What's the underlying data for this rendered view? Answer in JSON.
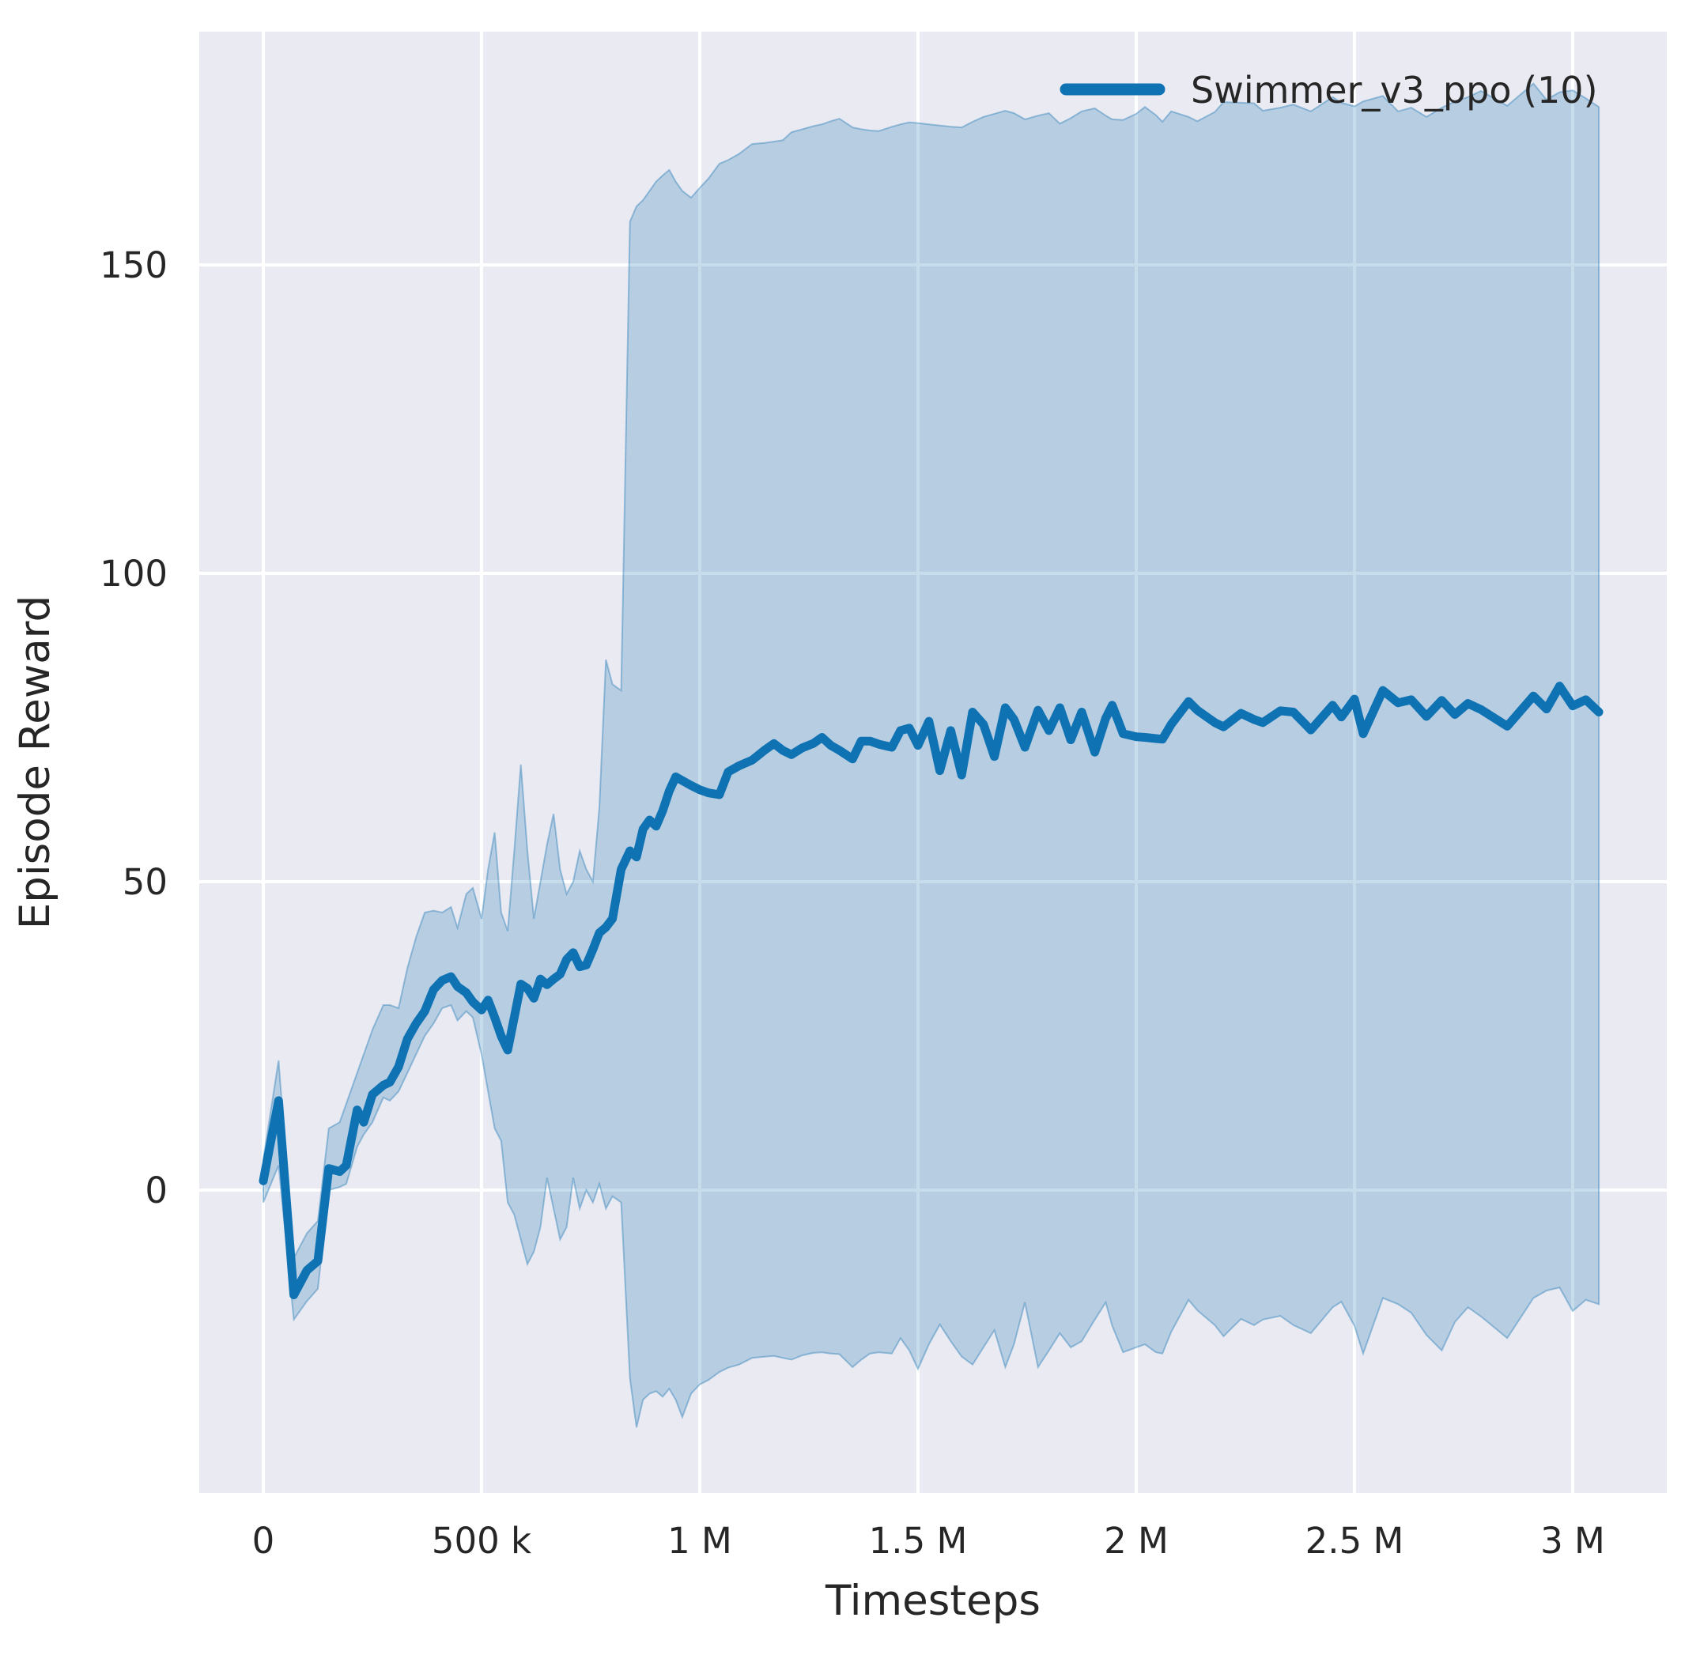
{
  "figure": {
    "background": "#ffffff",
    "plot_background": "#eaeaf2",
    "grid_color": "#ffffff",
    "text_color": "#262626"
  },
  "legend": {
    "label": "Swimmer_v3_ppo (10)",
    "line_color": "#0f72b3"
  },
  "axes": {
    "x_label": "Timesteps",
    "y_label": "Episode Reward",
    "x_ticks": [
      {
        "value": 0.0,
        "label": "0"
      },
      {
        "value": 0.5,
        "label": "500 k"
      },
      {
        "value": 1.0,
        "label": "1 M"
      },
      {
        "value": 1.5,
        "label": "1.5 M"
      },
      {
        "value": 2.0,
        "label": "2 M"
      },
      {
        "value": 2.5,
        "label": "2.5 M"
      },
      {
        "value": 3.0,
        "label": "3 M"
      }
    ],
    "y_ticks": [
      {
        "value": 0,
        "label": "0"
      },
      {
        "value": 50,
        "label": "50"
      },
      {
        "value": 100,
        "label": "100"
      },
      {
        "value": 150,
        "label": "150"
      }
    ]
  },
  "chart_data": {
    "type": "line",
    "title": "",
    "xlabel": "Timesteps",
    "ylabel": "Episode Reward",
    "legend_position": "upper right",
    "grid": true,
    "x_unit": "timesteps (millions)",
    "xlim_millions": [
      -0.147,
      3.215
    ],
    "ylim": [
      -49,
      188
    ],
    "line_color": "#0f72b3",
    "band_fill": "rgba(31,119,180,0.25)",
    "band_edge": "rgba(31,119,180,0.4)",
    "series": [
      {
        "name": "Swimmer_v3_ppo (10)",
        "x_millions": [
          0,
          0.035,
          0.07,
          0.1,
          0.125,
          0.15,
          0.175,
          0.19,
          0.215,
          0.23,
          0.25,
          0.275,
          0.29,
          0.31,
          0.33,
          0.35,
          0.37,
          0.39,
          0.41,
          0.43,
          0.445,
          0.465,
          0.48,
          0.5,
          0.515,
          0.53,
          0.545,
          0.56,
          0.575,
          0.59,
          0.605,
          0.62,
          0.635,
          0.65,
          0.665,
          0.68,
          0.695,
          0.71,
          0.725,
          0.74,
          0.755,
          0.77,
          0.785,
          0.8,
          0.82,
          0.84,
          0.855,
          0.87,
          0.885,
          0.9,
          0.915,
          0.93,
          0.945,
          0.96,
          0.98,
          1.0,
          1.02,
          1.045,
          1.065,
          1.09,
          1.12,
          1.15,
          1.17,
          1.19,
          1.21,
          1.235,
          1.26,
          1.28,
          1.3,
          1.32,
          1.35,
          1.37,
          1.39,
          1.41,
          1.44,
          1.46,
          1.48,
          1.5,
          1.525,
          1.55,
          1.575,
          1.6,
          1.625,
          1.65,
          1.675,
          1.7,
          1.72,
          1.745,
          1.775,
          1.8,
          1.825,
          1.85,
          1.875,
          1.905,
          1.93,
          1.945,
          1.97,
          2.0,
          2.02,
          2.045,
          2.06,
          2.08,
          2.12,
          2.14,
          2.18,
          2.2,
          2.24,
          2.27,
          2.29,
          2.33,
          2.36,
          2.4,
          2.45,
          2.47,
          2.5,
          2.52,
          2.565,
          2.6,
          2.63,
          2.665,
          2.7,
          2.73,
          2.76,
          2.79,
          2.85,
          2.91,
          2.94,
          2.97,
          3.0,
          3.03,
          3.06
        ],
        "mean": [
          1.5,
          14.5,
          -17,
          -13,
          -11.5,
          3.5,
          3,
          4,
          13,
          11,
          15.5,
          17,
          17.5,
          20,
          24.5,
          27,
          29,
          32.5,
          34,
          34.6,
          33,
          32,
          30.5,
          29.2,
          30.8,
          28,
          25,
          22.7,
          28,
          33.4,
          32.7,
          31.1,
          34.2,
          33.3,
          34.2,
          35,
          37.4,
          38.5,
          36.2,
          36.5,
          39,
          41.7,
          42.6,
          44,
          52,
          55,
          54,
          58.5,
          60,
          59,
          61.5,
          64.7,
          67,
          66.4,
          65.6,
          64.9,
          64.4,
          64.1,
          67.8,
          68.8,
          69.7,
          71.4,
          72.4,
          71.3,
          70.6,
          71.7,
          72.4,
          73.4,
          72.1,
          71.3,
          69.9,
          72.8,
          72.8,
          72.3,
          71.8,
          74.5,
          74.9,
          72.1,
          76,
          68,
          74.5,
          67.3,
          77.5,
          75.5,
          70.3,
          78.2,
          76.3,
          71.8,
          77.8,
          74.5,
          78.2,
          73,
          77.5,
          71,
          76.5,
          78.6,
          74,
          73.5,
          73.4,
          73.2,
          73.1,
          75.5,
          79.2,
          77.8,
          75.8,
          75.1,
          77.3,
          76.3,
          75.8,
          77.7,
          77.5,
          74.6,
          78.6,
          76.7,
          79.6,
          74,
          81,
          79,
          79.5,
          76.8,
          79.4,
          77.1,
          78.9,
          77.9,
          75.2,
          80.1,
          78,
          81.7,
          78.5,
          79.5,
          77.5
        ],
        "lower": [
          -2,
          4,
          -21,
          -18,
          -16,
          0,
          0.5,
          1,
          7,
          9,
          11,
          15,
          14.5,
          16,
          19,
          22,
          25,
          27,
          29.5,
          30,
          27.5,
          29,
          28,
          22,
          16,
          10,
          8,
          -2,
          -4,
          -8,
          -12,
          -10,
          -6,
          2,
          -3,
          -8,
          -6,
          2,
          -3,
          0,
          -2,
          1,
          -3,
          -1,
          -2,
          -30.5,
          -38.5,
          -34,
          -33,
          -32.6,
          -33.5,
          -32.2,
          -34,
          -36.8,
          -33,
          -31.5,
          -30.8,
          -29.5,
          -28.8,
          -28.3,
          -27.2,
          -27,
          -26.9,
          -27.2,
          -27.5,
          -26.8,
          -26.4,
          -26.3,
          -26.5,
          -26.6,
          -28.7,
          -27.5,
          -26.5,
          -26.3,
          -26.5,
          -24,
          -26,
          -29,
          -25,
          -21.8,
          -24.5,
          -27,
          -28.3,
          -25.5,
          -22.7,
          -28.7,
          -25,
          -18.2,
          -28.7,
          -26,
          -23.2,
          -25.5,
          -24.5,
          -21,
          -18.2,
          -22,
          -26.3,
          -25.5,
          -25,
          -26.3,
          -26.5,
          -23,
          -17.8,
          -19.5,
          -21.9,
          -23.7,
          -20.9,
          -21.9,
          -21,
          -20.4,
          -21.9,
          -23.2,
          -19,
          -18.1,
          -22,
          -26.5,
          -17.5,
          -18.5,
          -19.9,
          -23.5,
          -26,
          -21.4,
          -19,
          -20.5,
          -24,
          -17.5,
          -16.3,
          -15.8,
          -19.6,
          -17.8,
          -18.5
        ],
        "upper": [
          5,
          21,
          -11,
          -7,
          -5,
          10,
          11,
          14,
          19,
          22,
          26,
          30,
          30,
          29.5,
          36,
          41,
          45,
          45.3,
          45,
          45.9,
          42.5,
          48,
          49,
          44,
          52,
          58,
          45,
          42,
          55,
          69,
          55,
          44,
          50,
          56,
          61,
          52,
          48,
          50,
          55,
          52,
          50,
          62,
          86,
          82,
          81,
          157,
          159.5,
          160.5,
          162,
          163.5,
          164.5,
          165.4,
          163.5,
          162,
          160.9,
          162.5,
          164,
          166.4,
          167,
          168,
          169.6,
          169.8,
          170,
          170.2,
          171.5,
          172,
          172.5,
          172.8,
          173.3,
          173.7,
          172.3,
          172,
          171.8,
          171.7,
          172.4,
          172.8,
          173.1,
          173,
          172.8,
          172.6,
          172.4,
          172.3,
          173.2,
          174,
          174.5,
          175,
          174.6,
          173.6,
          174.2,
          174.6,
          172.9,
          173.8,
          174.9,
          175.4,
          174.2,
          173.6,
          173.5,
          174.5,
          175.6,
          174.3,
          173.2,
          174.9,
          174,
          173.3,
          174.8,
          176.4,
          176.3,
          176.2,
          175,
          175.5,
          176,
          174.9,
          177.2,
          176.3,
          175.7,
          176.5,
          177.4,
          174.9,
          175.5,
          174,
          175.5,
          176.5,
          177.2,
          178.2,
          175.8,
          179.4,
          176.8,
          178,
          178.3,
          177,
          175.6
        ]
      }
    ]
  }
}
